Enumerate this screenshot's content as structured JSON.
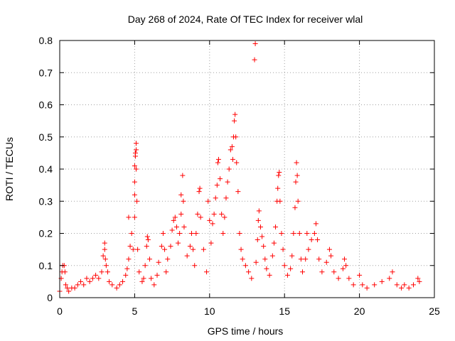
{
  "chart_data": {
    "type": "scatter",
    "title": "Day 268 of 2024, Rate Of TEC Index for receiver wlal",
    "xlabel": "GPS time / hours",
    "ylabel": "ROTI / TECUs",
    "xlim": [
      0,
      25
    ],
    "ylim": [
      0,
      0.8
    ],
    "xticks": [
      "0",
      "5",
      "10",
      "15",
      "20",
      "25"
    ],
    "yticks": [
      "0",
      "0.1",
      "0.2",
      "0.3",
      "0.4",
      "0.5",
      "0.6",
      "0.7",
      "0.8"
    ],
    "grid": true,
    "marker": "plus",
    "colors": {
      "points": "#ff0000",
      "grid": "#a0a0a0",
      "frame": "#000000"
    },
    "series": [
      {
        "points": [
          [
            0.0,
            0.02
          ],
          [
            0.1,
            0.06
          ],
          [
            0.15,
            0.08
          ],
          [
            0.2,
            0.1
          ],
          [
            0.3,
            0.1
          ],
          [
            0.35,
            0.08
          ],
          [
            0.4,
            0.04
          ],
          [
            0.5,
            0.03
          ],
          [
            0.6,
            0.02
          ],
          [
            0.8,
            0.03
          ],
          [
            1.0,
            0.03
          ],
          [
            1.2,
            0.04
          ],
          [
            1.4,
            0.05
          ],
          [
            1.6,
            0.04
          ],
          [
            1.8,
            0.06
          ],
          [
            2.0,
            0.05
          ],
          [
            2.2,
            0.06
          ],
          [
            2.4,
            0.07
          ],
          [
            2.6,
            0.06
          ],
          [
            2.8,
            0.08
          ],
          [
            2.9,
            0.13
          ],
          [
            3.0,
            0.15
          ],
          [
            3.0,
            0.17
          ],
          [
            3.05,
            0.12
          ],
          [
            3.1,
            0.1
          ],
          [
            3.2,
            0.08
          ],
          [
            3.3,
            0.05
          ],
          [
            3.5,
            0.04
          ],
          [
            3.8,
            0.03
          ],
          [
            4.0,
            0.04
          ],
          [
            4.2,
            0.05
          ],
          [
            4.4,
            0.07
          ],
          [
            4.5,
            0.09
          ],
          [
            4.6,
            0.12
          ],
          [
            4.6,
            0.25
          ],
          [
            4.7,
            0.16
          ],
          [
            4.8,
            0.2
          ],
          [
            4.9,
            0.15
          ],
          [
            5.0,
            0.25
          ],
          [
            5.0,
            0.32
          ],
          [
            5.0,
            0.36
          ],
          [
            5.0,
            0.41
          ],
          [
            5.05,
            0.44
          ],
          [
            5.05,
            0.45
          ],
          [
            5.1,
            0.46
          ],
          [
            5.1,
            0.48
          ],
          [
            5.1,
            0.4
          ],
          [
            5.15,
            0.3
          ],
          [
            5.2,
            0.15
          ],
          [
            5.3,
            0.08
          ],
          [
            5.5,
            0.05
          ],
          [
            5.6,
            0.06
          ],
          [
            5.7,
            0.1
          ],
          [
            5.8,
            0.16
          ],
          [
            5.85,
            0.19
          ],
          [
            5.9,
            0.18
          ],
          [
            6.0,
            0.12
          ],
          [
            6.1,
            0.06
          ],
          [
            6.3,
            0.04
          ],
          [
            6.5,
            0.07
          ],
          [
            6.6,
            0.11
          ],
          [
            6.8,
            0.16
          ],
          [
            6.9,
            0.2
          ],
          [
            7.0,
            0.15
          ],
          [
            7.1,
            0.08
          ],
          [
            7.2,
            0.12
          ],
          [
            7.4,
            0.16
          ],
          [
            7.5,
            0.21
          ],
          [
            7.6,
            0.24
          ],
          [
            7.7,
            0.25
          ],
          [
            7.8,
            0.22
          ],
          [
            7.9,
            0.17
          ],
          [
            8.0,
            0.2
          ],
          [
            8.1,
            0.26
          ],
          [
            8.1,
            0.32
          ],
          [
            8.2,
            0.38
          ],
          [
            8.25,
            0.3
          ],
          [
            8.3,
            0.22
          ],
          [
            8.5,
            0.13
          ],
          [
            8.7,
            0.16
          ],
          [
            8.8,
            0.2
          ],
          [
            8.9,
            0.15
          ],
          [
            9.0,
            0.1
          ],
          [
            9.1,
            0.2
          ],
          [
            9.2,
            0.26
          ],
          [
            9.3,
            0.33
          ],
          [
            9.35,
            0.34
          ],
          [
            9.4,
            0.25
          ],
          [
            9.6,
            0.15
          ],
          [
            9.8,
            0.08
          ],
          [
            9.9,
            0.3
          ],
          [
            10.0,
            0.24
          ],
          [
            10.1,
            0.17
          ],
          [
            10.2,
            0.23
          ],
          [
            10.3,
            0.26
          ],
          [
            10.4,
            0.31
          ],
          [
            10.5,
            0.35
          ],
          [
            10.55,
            0.42
          ],
          [
            10.6,
            0.43
          ],
          [
            10.7,
            0.37
          ],
          [
            10.8,
            0.26
          ],
          [
            10.9,
            0.2
          ],
          [
            11.0,
            0.25
          ],
          [
            11.1,
            0.31
          ],
          [
            11.2,
            0.36
          ],
          [
            11.3,
            0.4
          ],
          [
            11.4,
            0.46
          ],
          [
            11.5,
            0.47
          ],
          [
            11.55,
            0.43
          ],
          [
            11.6,
            0.5
          ],
          [
            11.65,
            0.55
          ],
          [
            11.7,
            0.57
          ],
          [
            11.75,
            0.5
          ],
          [
            11.8,
            0.42
          ],
          [
            11.9,
            0.33
          ],
          [
            12.0,
            0.2
          ],
          [
            12.1,
            0.15
          ],
          [
            12.2,
            0.12
          ],
          [
            12.4,
            0.1
          ],
          [
            12.6,
            0.08
          ],
          [
            12.8,
            0.06
          ],
          [
            13.0,
            0.74
          ],
          [
            13.05,
            0.79
          ],
          [
            13.1,
            0.11
          ],
          [
            13.2,
            0.18
          ],
          [
            13.25,
            0.24
          ],
          [
            13.3,
            0.27
          ],
          [
            13.4,
            0.22
          ],
          [
            13.5,
            0.19
          ],
          [
            13.6,
            0.16
          ],
          [
            13.7,
            0.12
          ],
          [
            13.8,
            0.09
          ],
          [
            14.0,
            0.07
          ],
          [
            14.2,
            0.13
          ],
          [
            14.3,
            0.17
          ],
          [
            14.4,
            0.22
          ],
          [
            14.5,
            0.3
          ],
          [
            14.55,
            0.34
          ],
          [
            14.6,
            0.38
          ],
          [
            14.65,
            0.39
          ],
          [
            14.7,
            0.3
          ],
          [
            14.8,
            0.2
          ],
          [
            14.9,
            0.15
          ],
          [
            15.0,
            0.1
          ],
          [
            15.2,
            0.07
          ],
          [
            15.4,
            0.09
          ],
          [
            15.5,
            0.13
          ],
          [
            15.6,
            0.2
          ],
          [
            15.7,
            0.28
          ],
          [
            15.75,
            0.36
          ],
          [
            15.8,
            0.42
          ],
          [
            15.85,
            0.38
          ],
          [
            15.9,
            0.3
          ],
          [
            16.0,
            0.2
          ],
          [
            16.1,
            0.12
          ],
          [
            16.2,
            0.08
          ],
          [
            16.4,
            0.12
          ],
          [
            16.5,
            0.2
          ],
          [
            16.6,
            0.15
          ],
          [
            16.8,
            0.18
          ],
          [
            17.0,
            0.2
          ],
          [
            17.1,
            0.23
          ],
          [
            17.2,
            0.18
          ],
          [
            17.3,
            0.12
          ],
          [
            17.5,
            0.08
          ],
          [
            17.8,
            0.11
          ],
          [
            18.0,
            0.15
          ],
          [
            18.1,
            0.13
          ],
          [
            18.3,
            0.08
          ],
          [
            18.6,
            0.06
          ],
          [
            18.9,
            0.09
          ],
          [
            19.0,
            0.12
          ],
          [
            19.1,
            0.1
          ],
          [
            19.3,
            0.06
          ],
          [
            19.6,
            0.04
          ],
          [
            20.0,
            0.07
          ],
          [
            20.2,
            0.04
          ],
          [
            20.5,
            0.03
          ],
          [
            21.0,
            0.04
          ],
          [
            21.5,
            0.05
          ],
          [
            22.0,
            0.06
          ],
          [
            22.2,
            0.08
          ],
          [
            22.5,
            0.04
          ],
          [
            22.8,
            0.03
          ],
          [
            23.0,
            0.04
          ],
          [
            23.3,
            0.03
          ],
          [
            23.6,
            0.04
          ],
          [
            23.9,
            0.06
          ],
          [
            24.0,
            0.05
          ]
        ]
      }
    ]
  }
}
